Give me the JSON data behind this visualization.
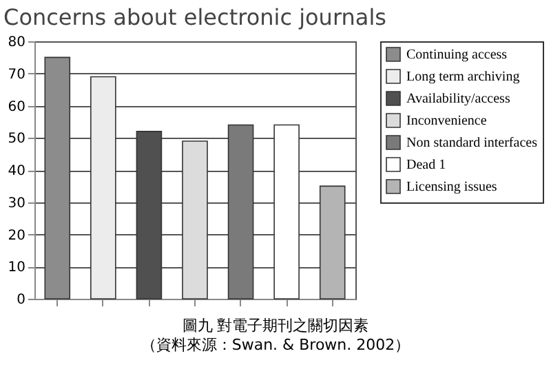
{
  "chart_data": {
    "type": "bar",
    "title": "Concerns about electronic journals",
    "categories": [
      null,
      null,
      null,
      null,
      null,
      null,
      null
    ],
    "series": [
      {
        "name": "Continuing access",
        "color": "#8c8c8c",
        "values": [
          75,
          null,
          null,
          null,
          null,
          null,
          null
        ]
      },
      {
        "name": "Long term archiving",
        "color": "#ececec",
        "values": [
          null,
          69,
          null,
          null,
          null,
          null,
          null
        ]
      },
      {
        "name": "Availability/access",
        "color": "#505050",
        "values": [
          null,
          null,
          52,
          null,
          null,
          null,
          null
        ]
      },
      {
        "name": "Inconvenience",
        "color": "#dcdcdc",
        "values": [
          null,
          null,
          null,
          49,
          null,
          null,
          null
        ]
      },
      {
        "name": "Non standard interfaces",
        "color": "#7a7a7a",
        "values": [
          null,
          null,
          null,
          null,
          54,
          null,
          null
        ]
      },
      {
        "name": "Dead 1",
        "color": "#ffffff",
        "values": [
          null,
          null,
          null,
          null,
          null,
          54,
          null
        ]
      },
      {
        "name": "Licensing issues",
        "color": "#b4b4b4",
        "values": [
          null,
          null,
          null,
          null,
          null,
          null,
          35
        ]
      }
    ],
    "ylim": [
      0,
      80
    ],
    "yticks": [
      0,
      10,
      20,
      30,
      40,
      50,
      60,
      70,
      80
    ],
    "grid": "y",
    "legend": "right",
    "tick_labels": "y",
    "annotations": [
      "圖九 對電子期刊之關切因素",
      "（資料來源：Swan. & Brown. 2002）"
    ]
  }
}
